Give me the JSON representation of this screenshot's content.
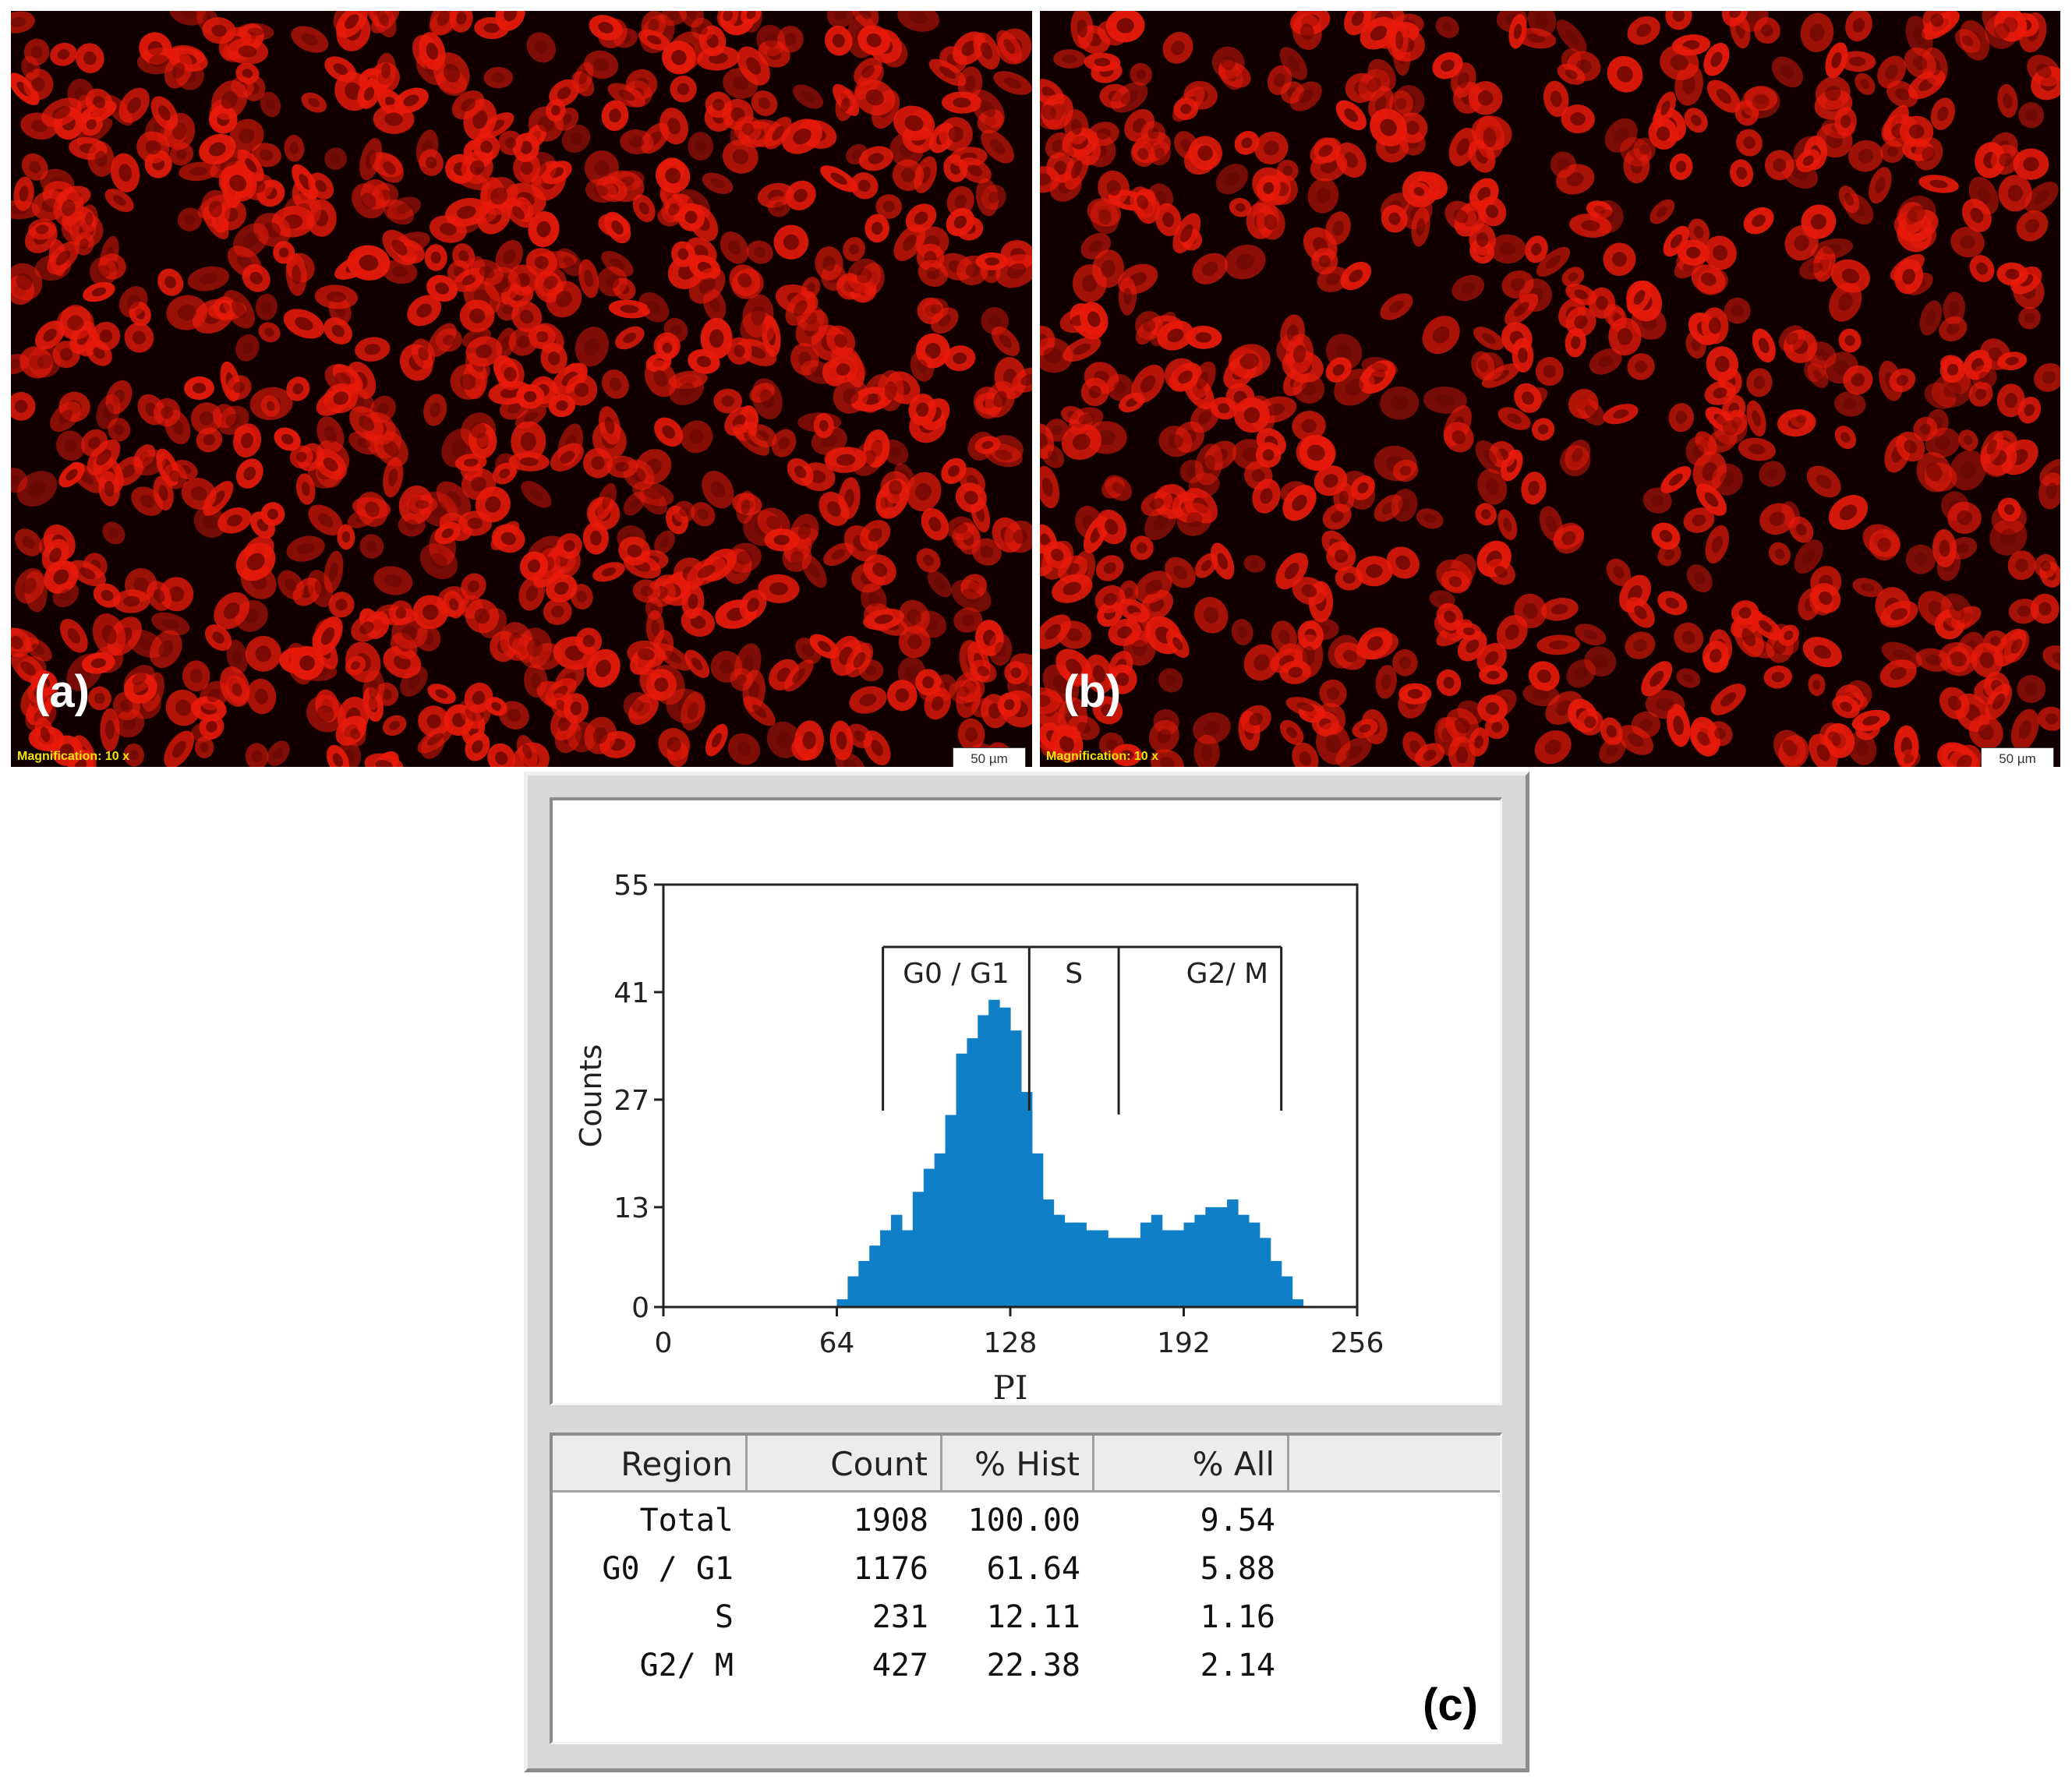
{
  "panel_a": {
    "label": "(a)",
    "magnification": "Magnification:  10 x",
    "scale_bar": "50 µm"
  },
  "panel_b": {
    "label": "(b)",
    "magnification": "Magnification:  10 x",
    "scale_bar": "50 µm"
  },
  "panel_c": {
    "label": "(c)"
  },
  "colors": {
    "cell_fill": "#e81a0a",
    "histogram_fill": "#0f7fc8",
    "micro_background": "#120000"
  },
  "chart_data": {
    "type": "bar",
    "xlabel": "PI",
    "ylabel": "Counts",
    "xlim": [
      0,
      256
    ],
    "ylim": [
      0,
      55
    ],
    "xticks": [
      "0",
      "64",
      "128",
      "192",
      "256"
    ],
    "yticks": [
      "0",
      "13",
      "27",
      "41",
      "55"
    ],
    "grid": false,
    "regions": [
      {
        "name": "G0 / G1",
        "start": 81,
        "end": 135
      },
      {
        "name": "S",
        "start": 135,
        "end": 168
      },
      {
        "name": "G2/ M",
        "start": 168,
        "end": 228
      }
    ],
    "bin_step": 4,
    "bins_start": 64,
    "values": [
      1,
      4,
      6,
      8,
      10,
      12,
      10,
      15,
      18,
      20,
      25,
      33,
      35,
      38,
      40,
      39,
      36,
      28,
      20,
      14,
      12,
      11,
      11,
      10,
      10,
      9,
      9,
      9,
      11,
      12,
      10,
      10,
      11,
      12,
      13,
      13,
      14,
      12,
      11,
      9,
      6,
      4,
      1
    ]
  },
  "stats_table": {
    "headers": [
      "Region",
      "Count",
      "% Hist",
      "% All"
    ],
    "rows": [
      [
        "Total",
        "1908",
        "100.00",
        "9.54"
      ],
      [
        "G0 / G1",
        "1176",
        "61.64",
        "5.88"
      ],
      [
        "S",
        "231",
        "12.11",
        "1.16"
      ],
      [
        "G2/ M",
        "427",
        "22.38",
        "2.14"
      ]
    ]
  }
}
